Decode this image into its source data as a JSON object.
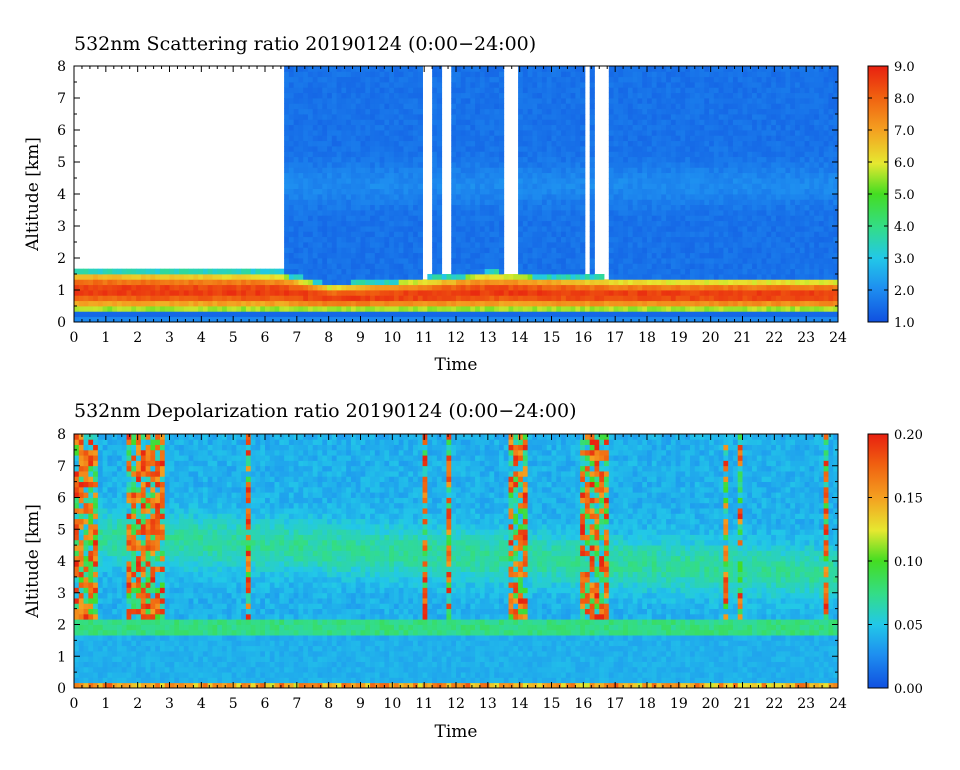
{
  "chart_data": [
    {
      "type": "heatmap",
      "title": "532nm Scattering ratio  20190124 (0:00−24:00)",
      "xlabel": "Time",
      "ylabel": "Altitude [km]",
      "xlim": [
        0,
        24
      ],
      "ylim": [
        0,
        8
      ],
      "x_ticks": [
        "0",
        "1",
        "2",
        "3",
        "4",
        "5",
        "6",
        "7",
        "8",
        "9",
        "10",
        "11",
        "12",
        "13",
        "14",
        "15",
        "16",
        "17",
        "18",
        "19",
        "20",
        "21",
        "22",
        "23",
        "24"
      ],
      "y_ticks": [
        "0",
        "1",
        "2",
        "3",
        "4",
        "5",
        "6",
        "7",
        "8"
      ],
      "colorbar": {
        "min": 1.0,
        "max": 9.0,
        "ticks": [
          "1.0",
          "2.0",
          "3.0",
          "4.0",
          "5.0",
          "6.0",
          "7.0",
          "8.0",
          "9.0"
        ]
      },
      "features": {
        "boundary_layer_top_km": [
          {
            "t": 0,
            "z": 1.7
          },
          {
            "t": 6.5,
            "z": 1.6
          },
          {
            "t": 8,
            "z": 1.2
          },
          {
            "t": 11,
            "z": 1.4
          },
          {
            "t": 13,
            "z": 1.6
          },
          {
            "t": 17,
            "z": 1.4
          },
          {
            "t": 24,
            "z": 1.4
          }
        ],
        "data_gaps_hours": [
          [
            0,
            6.6
          ],
          [
            10.9,
            11.3
          ],
          [
            11.6,
            11.8
          ],
          [
            13.5,
            14.0
          ],
          [
            16.0,
            16.2
          ],
          [
            16.4,
            16.8
          ]
        ]
      }
    },
    {
      "type": "heatmap",
      "title": "532nm Depolarization ratio  20190124 (0:00−24:00)",
      "xlabel": "Time",
      "ylabel": "Altitude [km]",
      "xlim": [
        0,
        24
      ],
      "ylim": [
        0,
        8
      ],
      "x_ticks": [
        "0",
        "1",
        "2",
        "3",
        "4",
        "5",
        "6",
        "7",
        "8",
        "9",
        "10",
        "11",
        "12",
        "13",
        "14",
        "15",
        "16",
        "17",
        "18",
        "19",
        "20",
        "21",
        "22",
        "23",
        "24"
      ],
      "y_ticks": [
        "0",
        "1",
        "2",
        "3",
        "4",
        "5",
        "6",
        "7",
        "8"
      ],
      "colorbar": {
        "min": 0.0,
        "max": 0.2,
        "ticks": [
          "0.00",
          "0.05",
          "0.10",
          "0.15",
          "0.20"
        ]
      },
      "features": {
        "aerosol_layer_top_km": 2.0,
        "noisy_columns_hours": [
          [
            0,
            0.8
          ],
          [
            1.7,
            2.8
          ],
          [
            5.4,
            5.6
          ],
          [
            10.9,
            11.1
          ],
          [
            11.7,
            11.9
          ],
          [
            13.6,
            14.2
          ],
          [
            15.9,
            16.8
          ],
          [
            20.4,
            20.5
          ],
          [
            20.9,
            21.0
          ],
          [
            23.5,
            23.7
          ]
        ]
      }
    }
  ]
}
